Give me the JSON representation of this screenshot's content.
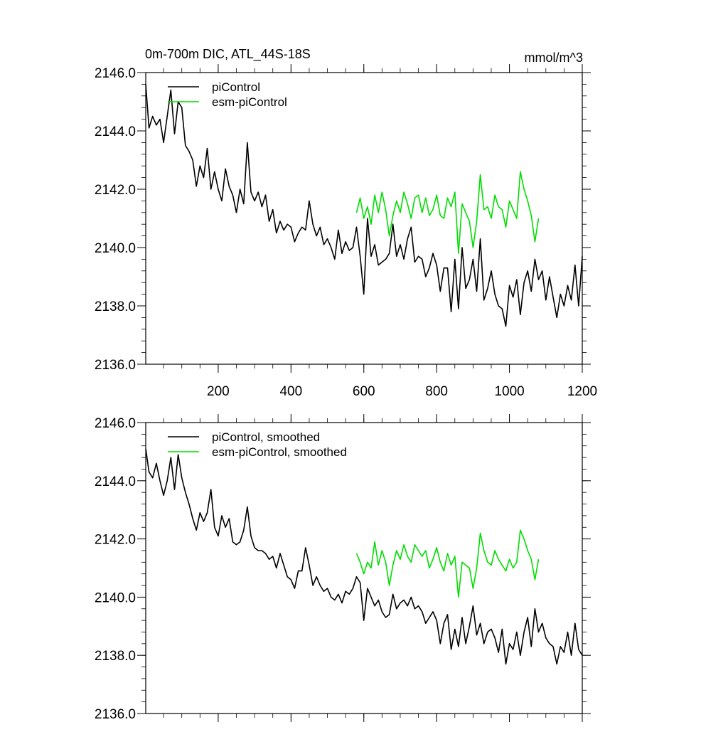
{
  "figure": {
    "title": "0m-700m DIC, ATL_44S-18S",
    "units": "mmol/m^3"
  },
  "chart_data": [
    {
      "type": "line",
      "title": "0m-700m DIC, ATL_44S-18S",
      "units": "mmol/m^3",
      "xlim": [
        1,
        1200
      ],
      "ylim": [
        2136.0,
        2146.0
      ],
      "x_ticks": [
        200,
        400,
        600,
        800,
        1000,
        1200
      ],
      "x_tick_labels": [
        "200",
        "400",
        "600",
        "800",
        "1000",
        "1200"
      ],
      "y_ticks": [
        2136.0,
        2138.0,
        2140.0,
        2142.0,
        2144.0,
        2146.0
      ],
      "y_tick_labels": [
        "2136.0",
        "2138.0",
        "2140.0",
        "2142.0",
        "2144.0",
        "2146.0"
      ],
      "legend_position": "top-left",
      "legend": [
        "piControl",
        "esm-piControl"
      ],
      "series": [
        {
          "name": "piControl",
          "color": "#000000",
          "x": [
            1,
            10,
            20,
            30,
            40,
            50,
            60,
            70,
            80,
            90,
            100,
            110,
            120,
            130,
            140,
            150,
            160,
            170,
            180,
            190,
            200,
            210,
            220,
            230,
            240,
            250,
            260,
            270,
            280,
            290,
            300,
            310,
            320,
            330,
            340,
            350,
            360,
            370,
            380,
            390,
            400,
            410,
            420,
            430,
            440,
            450,
            460,
            470,
            480,
            490,
            500,
            510,
            520,
            530,
            540,
            550,
            560,
            570,
            580,
            590,
            600,
            610,
            620,
            630,
            640,
            650,
            660,
            670,
            680,
            690,
            700,
            710,
            720,
            730,
            740,
            750,
            760,
            770,
            780,
            790,
            800,
            810,
            820,
            830,
            840,
            850,
            860,
            870,
            880,
            890,
            900,
            910,
            920,
            930,
            940,
            950,
            960,
            970,
            980,
            990,
            1000,
            1010,
            1020,
            1030,
            1040,
            1050,
            1060,
            1070,
            1080,
            1090,
            1100,
            1110,
            1120,
            1130,
            1140,
            1150,
            1160,
            1170,
            1180,
            1190,
            1200
          ],
          "values": [
            2145.6,
            2144.1,
            2144.5,
            2144.2,
            2144.4,
            2143.6,
            2144.5,
            2145.4,
            2143.9,
            2145.0,
            2144.8,
            2143.5,
            2143.3,
            2143.0,
            2142.1,
            2142.8,
            2142.4,
            2143.4,
            2142.0,
            2142.6,
            2142.0,
            2141.6,
            2142.7,
            2142.1,
            2141.8,
            2141.2,
            2142.0,
            2141.5,
            2143.6,
            2141.9,
            2141.6,
            2141.9,
            2141.4,
            2141.8,
            2140.9,
            2141.3,
            2140.5,
            2140.9,
            2140.6,
            2140.8,
            2140.7,
            2140.2,
            2140.5,
            2140.7,
            2140.6,
            2141.6,
            2140.8,
            2140.4,
            2140.7,
            2140.1,
            2140.3,
            2140.0,
            2139.6,
            2140.6,
            2139.8,
            2140.2,
            2139.9,
            2140.0,
            2140.7,
            2139.7,
            2138.4,
            2141.0,
            2139.7,
            2140.1,
            2139.4,
            2139.5,
            2139.6,
            2139.8,
            2140.8,
            2139.7,
            2140.1,
            2139.6,
            2140.3,
            2140.7,
            2139.5,
            2139.7,
            2139.6,
            2139.0,
            2139.3,
            2139.8,
            2139.4,
            2138.5,
            2139.3,
            2139.3,
            2137.8,
            2139.6,
            2137.9,
            2140.0,
            2138.6,
            2138.9,
            2139.6,
            2138.5,
            2140.3,
            2138.2,
            2138.6,
            2139.2,
            2138.4,
            2138.0,
            2137.9,
            2137.3,
            2138.7,
            2138.3,
            2138.9,
            2137.7,
            2138.8,
            2139.2,
            2138.5,
            2139.6,
            2138.9,
            2139.2,
            2138.2,
            2139.0,
            2138.3,
            2137.6,
            2138.4,
            2138.0,
            2138.7,
            2138.2,
            2139.4,
            2138.0,
            2139.7
          ]
        },
        {
          "name": "esm-piControl",
          "color": "#00dd00",
          "x": [
            580,
            590,
            600,
            610,
            620,
            630,
            640,
            650,
            660,
            670,
            680,
            690,
            700,
            710,
            720,
            730,
            740,
            750,
            760,
            770,
            780,
            790,
            800,
            810,
            820,
            830,
            840,
            850,
            860,
            870,
            880,
            890,
            900,
            910,
            920,
            930,
            940,
            950,
            960,
            970,
            980,
            990,
            1000,
            1010,
            1020,
            1030,
            1040,
            1050,
            1060,
            1070,
            1080
          ],
          "values": [
            2141.2,
            2141.7,
            2141.0,
            2141.4,
            2140.8,
            2141.8,
            2141.2,
            2141.9,
            2141.3,
            2140.4,
            2141.1,
            2141.6,
            2141.2,
            2141.9,
            2141.5,
            2141.0,
            2141.7,
            2141.8,
            2141.2,
            2141.7,
            2141.1,
            2141.3,
            2141.8,
            2141.1,
            2141.0,
            2141.7,
            2141.4,
            2141.9,
            2139.8,
            2141.5,
            2141.2,
            2140.9,
            2140.0,
            2140.9,
            2142.5,
            2141.3,
            2141.4,
            2141.0,
            2141.8,
            2141.4,
            2141.3,
            2140.7,
            2141.6,
            2141.3,
            2141.0,
            2142.6,
            2142.0,
            2141.6,
            2141.1,
            2140.2,
            2141.0
          ]
        }
      ]
    },
    {
      "type": "line",
      "title": "",
      "xlim": [
        1,
        1200
      ],
      "ylim": [
        2136.0,
        2146.0
      ],
      "y_ticks": [
        2136.0,
        2138.0,
        2140.0,
        2142.0,
        2144.0,
        2146.0
      ],
      "y_tick_labels": [
        "2136.0",
        "2138.0",
        "2140.0",
        "2142.0",
        "2144.0",
        "2146.0"
      ],
      "legend_position": "top-left",
      "legend": [
        "piControl, smoothed",
        "esm-piControl, smoothed"
      ],
      "series": [
        {
          "name": "piControl, smoothed",
          "color": "#000000",
          "x": [
            1,
            10,
            20,
            30,
            40,
            50,
            60,
            70,
            80,
            90,
            100,
            110,
            120,
            130,
            140,
            150,
            160,
            170,
            180,
            190,
            200,
            210,
            220,
            230,
            240,
            250,
            260,
            270,
            280,
            290,
            300,
            310,
            320,
            330,
            340,
            350,
            360,
            370,
            380,
            390,
            400,
            410,
            420,
            430,
            440,
            450,
            460,
            470,
            480,
            490,
            500,
            510,
            520,
            530,
            540,
            550,
            560,
            570,
            580,
            590,
            600,
            610,
            620,
            630,
            640,
            650,
            660,
            670,
            680,
            690,
            700,
            710,
            720,
            730,
            740,
            750,
            760,
            770,
            780,
            790,
            800,
            810,
            820,
            830,
            840,
            850,
            860,
            870,
            880,
            890,
            900,
            910,
            920,
            930,
            940,
            950,
            960,
            970,
            980,
            990,
            1000,
            1010,
            1020,
            1030,
            1040,
            1050,
            1060,
            1070,
            1080,
            1090,
            1100,
            1110,
            1120,
            1130,
            1140,
            1150,
            1160,
            1170,
            1180,
            1190,
            1200
          ],
          "values": [
            2145.1,
            2144.3,
            2144.1,
            2144.6,
            2144.0,
            2143.5,
            2144.0,
            2144.8,
            2143.7,
            2144.9,
            2144.1,
            2143.6,
            2143.2,
            2142.7,
            2142.3,
            2142.9,
            2142.6,
            2142.9,
            2143.7,
            2142.4,
            2142.1,
            2142.8,
            2142.4,
            2142.7,
            2141.9,
            2141.8,
            2141.9,
            2142.3,
            2143.1,
            2142.1,
            2141.7,
            2141.6,
            2141.6,
            2141.5,
            2141.3,
            2141.4,
            2141.0,
            2141.5,
            2141.1,
            2140.7,
            2140.6,
            2140.3,
            2140.9,
            2140.9,
            2141.7,
            2141.1,
            2140.4,
            2140.7,
            2140.4,
            2140.2,
            2140.3,
            2140.0,
            2139.9,
            2140.1,
            2139.8,
            2140.2,
            2140.1,
            2140.3,
            2140.7,
            2140.5,
            2139.2,
            2140.3,
            2140.0,
            2139.7,
            2139.9,
            2139.5,
            2139.3,
            2139.4,
            2140.1,
            2139.6,
            2139.8,
            2139.9,
            2139.7,
            2140.0,
            2139.6,
            2139.7,
            2139.5,
            2139.1,
            2139.3,
            2139.5,
            2139.2,
            2138.4,
            2139.1,
            2139.4,
            2138.2,
            2138.9,
            2138.3,
            2139.3,
            2138.4,
            2139.0,
            2139.7,
            2138.7,
            2139.1,
            2138.4,
            2138.8,
            2138.9,
            2138.6,
            2138.1,
            2138.9,
            2137.7,
            2138.4,
            2138.2,
            2138.8,
            2138.0,
            2138.8,
            2139.3,
            2138.3,
            2139.6,
            2138.8,
            2139.1,
            2138.6,
            2138.4,
            2138.3,
            2137.7,
            2138.3,
            2138.1,
            2138.8,
            2138.0,
            2139.1,
            2138.2,
            2138.0
          ]
        },
        {
          "name": "esm-piControl, smoothed",
          "color": "#00dd00",
          "x": [
            580,
            590,
            600,
            610,
            620,
            630,
            640,
            650,
            660,
            670,
            680,
            690,
            700,
            710,
            720,
            730,
            740,
            750,
            760,
            770,
            780,
            790,
            800,
            810,
            820,
            830,
            840,
            850,
            860,
            870,
            880,
            890,
            900,
            910,
            920,
            930,
            940,
            950,
            960,
            970,
            980,
            990,
            1000,
            1010,
            1020,
            1030,
            1040,
            1050,
            1060,
            1070,
            1080
          ],
          "values": [
            2141.5,
            2141.2,
            2140.8,
            2141.2,
            2141.0,
            2141.9,
            2141.1,
            2141.6,
            2141.2,
            2140.4,
            2141.1,
            2141.6,
            2141.3,
            2141.8,
            2141.4,
            2141.2,
            2141.8,
            2141.6,
            2141.4,
            2141.6,
            2141.0,
            2141.3,
            2141.7,
            2141.2,
            2140.9,
            2141.5,
            2141.1,
            2141.4,
            2140.0,
            2141.2,
            2141.1,
            2141.0,
            2140.3,
            2141.0,
            2142.2,
            2141.6,
            2141.2,
            2141.1,
            2141.6,
            2141.3,
            2141.1,
            2140.9,
            2141.3,
            2141.0,
            2141.2,
            2142.3,
            2142.0,
            2141.6,
            2141.3,
            2140.6,
            2141.3
          ]
        }
      ]
    }
  ]
}
